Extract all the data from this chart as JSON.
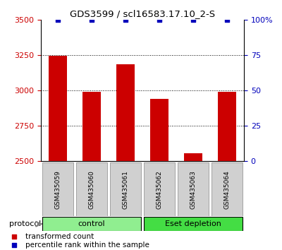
{
  "title": "GDS3599 / scl16583.17.10_2-S",
  "samples": [
    "GSM435059",
    "GSM435060",
    "GSM435061",
    "GSM435062",
    "GSM435063",
    "GSM435064"
  ],
  "red_values": [
    3247,
    2990,
    3185,
    2940,
    2558,
    2990
  ],
  "blue_values": [
    100,
    100,
    100,
    100,
    100,
    100
  ],
  "ylim_left": [
    2500,
    3500
  ],
  "ylim_right": [
    0,
    100
  ],
  "yticks_left": [
    2500,
    2750,
    3000,
    3250,
    3500
  ],
  "yticks_right": [
    0,
    25,
    50,
    75,
    100
  ],
  "ytick_labels_right": [
    "0",
    "25",
    "50",
    "75",
    "100%"
  ],
  "grid_values": [
    2750,
    3000,
    3250
  ],
  "groups": [
    {
      "label": "control",
      "start": 0,
      "end": 3,
      "color": "#90EE90"
    },
    {
      "label": "Eset depletion",
      "start": 3,
      "end": 6,
      "color": "#44DD44"
    }
  ],
  "bar_color": "#CC0000",
  "dot_color": "#0000BB",
  "bar_width": 0.55,
  "protocol_label": "protocol",
  "legend_items": [
    {
      "color": "#CC0000",
      "label": "transformed count"
    },
    {
      "color": "#0000BB",
      "label": "percentile rank within the sample"
    }
  ]
}
